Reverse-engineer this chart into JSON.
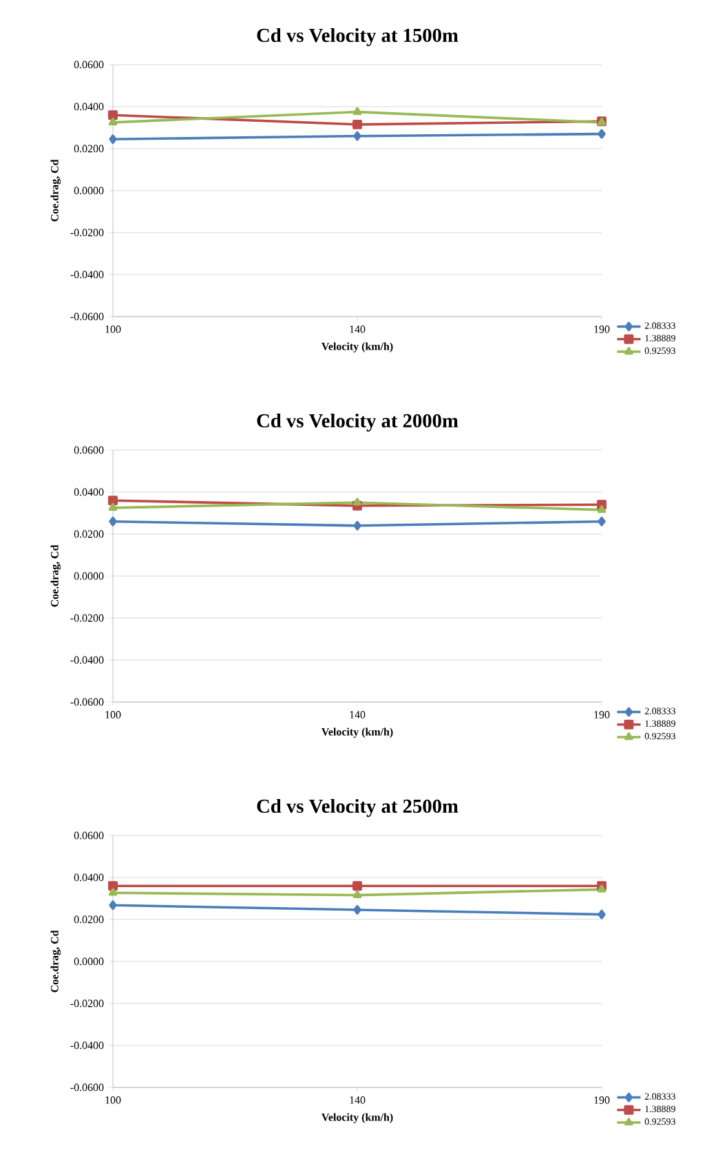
{
  "chart_data": [
    {
      "type": "line",
      "title": "Cd vs Velocity at 1500m",
      "xlabel": "Velocity (km/h)",
      "ylabel": "Coe.drag, Cd",
      "categories": [
        "100",
        "140",
        "190"
      ],
      "ylim": [
        -0.06,
        0.06
      ],
      "yticks": [
        {
          "value": -0.06,
          "label": "-0.0600"
        },
        {
          "value": -0.04,
          "label": "-0.0400"
        },
        {
          "value": -0.02,
          "label": "-0.0200"
        },
        {
          "value": 0,
          "label": "0.0000"
        },
        {
          "value": 0.02,
          "label": "0.0200"
        },
        {
          "value": 0.04,
          "label": "0.0400"
        },
        {
          "value": 0.06,
          "label": "0.0600"
        }
      ],
      "grid": "y",
      "legend": "bottom right",
      "series": [
        {
          "name": "2.08333",
          "color": "#4a7ebb",
          "marker": "diamond",
          "values": [
            0.0245,
            0.026,
            0.027
          ]
        },
        {
          "name": "1.38889",
          "color": "#be4b48",
          "marker": "square",
          "values": [
            0.036,
            0.0315,
            0.033
          ]
        },
        {
          "name": "0.92593",
          "color": "#98b954",
          "marker": "triangle",
          "values": [
            0.0325,
            0.0375,
            0.0325
          ]
        }
      ]
    },
    {
      "type": "line",
      "title": "Cd vs Velocity at 2000m",
      "xlabel": "Velocity (km/h)",
      "ylabel": "Coe.drag, Cd",
      "categories": [
        "100",
        "140",
        "190"
      ],
      "ylim": [
        -0.06,
        0.06
      ],
      "yticks": [
        {
          "value": -0.06,
          "label": "-0.0600"
        },
        {
          "value": -0.04,
          "label": "-0.0400"
        },
        {
          "value": -0.02,
          "label": "-0.0200"
        },
        {
          "value": 0,
          "label": "0.0000"
        },
        {
          "value": 0.02,
          "label": "0.0200"
        },
        {
          "value": 0.04,
          "label": "0.0400"
        },
        {
          "value": 0.06,
          "label": "0.0600"
        }
      ],
      "grid": "y",
      "legend": "bottom right",
      "series": [
        {
          "name": "2.08333",
          "color": "#4a7ebb",
          "marker": "diamond",
          "values": [
            0.026,
            0.024,
            0.026
          ]
        },
        {
          "name": "1.38889",
          "color": "#be4b48",
          "marker": "square",
          "values": [
            0.036,
            0.0335,
            0.034
          ]
        },
        {
          "name": "0.92593",
          "color": "#98b954",
          "marker": "triangle",
          "values": [
            0.0325,
            0.035,
            0.0315
          ]
        }
      ]
    },
    {
      "type": "line",
      "title": "Cd vs Velocity at 2500m",
      "xlabel": "Velocity (km/h)",
      "ylabel": "Coe.drag, Cd",
      "categories": [
        "100",
        "140",
        "190"
      ],
      "ylim": [
        -0.06,
        0.06
      ],
      "yticks": [
        {
          "value": -0.06,
          "label": "-0.0600"
        },
        {
          "value": -0.04,
          "label": "-0.0400"
        },
        {
          "value": -0.02,
          "label": "-0.0200"
        },
        {
          "value": 0,
          "label": "0.0000"
        },
        {
          "value": 0.02,
          "label": "0.0200"
        },
        {
          "value": 0.04,
          "label": "0.0400"
        },
        {
          "value": 0.06,
          "label": "0.0600"
        }
      ],
      "grid": "y",
      "legend": "bottom right",
      "series": [
        {
          "name": "2.08333",
          "color": "#4a7ebb",
          "marker": "diamond",
          "values": [
            0.0268,
            0.0246,
            0.0224
          ]
        },
        {
          "name": "1.38889",
          "color": "#be4b48",
          "marker": "square",
          "values": [
            0.036,
            0.036,
            0.036
          ]
        },
        {
          "name": "0.92593",
          "color": "#98b954",
          "marker": "triangle",
          "values": [
            0.0327,
            0.0316,
            0.0343
          ]
        }
      ]
    }
  ]
}
